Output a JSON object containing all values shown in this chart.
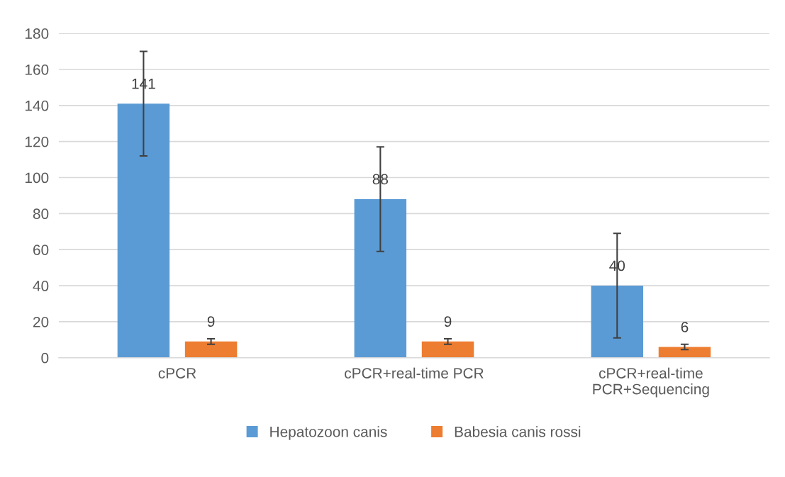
{
  "chart_data": {
    "type": "bar",
    "categories": [
      "cPCR",
      "cPCR+real-time PCR",
      "cPCR+real-time\nPCR+Sequencing"
    ],
    "series": [
      {
        "name": "Hepatozoon canis",
        "color": "#5b9bd5",
        "values": [
          141,
          88,
          40
        ],
        "errors": [
          29,
          29,
          29
        ]
      },
      {
        "name": "Babesia canis rossi",
        "color": "#ed7d31",
        "values": [
          9,
          9,
          6
        ],
        "errors": [
          1.5,
          1.5,
          1.5
        ]
      }
    ],
    "ylim": [
      0,
      180
    ],
    "yticks": [
      0,
      20,
      40,
      60,
      80,
      100,
      120,
      140,
      160,
      180
    ],
    "grid": "y",
    "legend": "bottom",
    "data_labels": true
  }
}
